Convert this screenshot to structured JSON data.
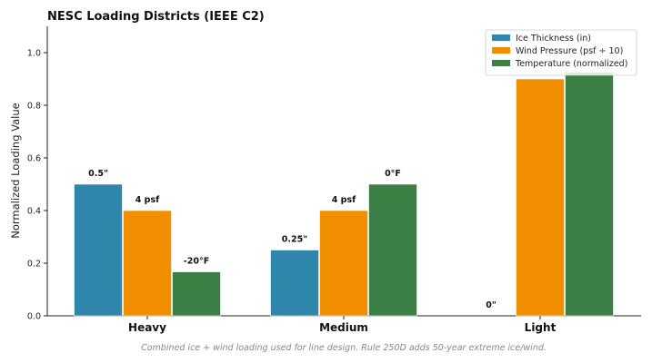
{
  "chart_data": {
    "type": "bar",
    "title": "NESC Loading Districts (IEEE C2)",
    "ylabel": "Normalized Loading Value",
    "xlabel": "",
    "categories": [
      "Heavy",
      "Medium",
      "Light"
    ],
    "ylim": [
      0,
      1.1
    ],
    "yticks": [
      "0.0",
      "0.2",
      "0.4",
      "0.6",
      "0.8",
      "1.0"
    ],
    "grid": false,
    "legend_position": "top-right",
    "series": [
      {
        "name": "Ice Thickness (in)",
        "color": "#2e86ab",
        "values": [
          0.5,
          0.25,
          0.0
        ],
        "labels": [
          "0.5\"",
          "0.25\"",
          "0\""
        ]
      },
      {
        "name": "Wind Pressure (psf ÷ 10)",
        "color": "#f18f01",
        "values": [
          0.4,
          0.4,
          0.9
        ],
        "labels": [
          "4 psf",
          "4 psf",
          ""
        ]
      },
      {
        "name": "Temperature (normalized)",
        "color": "#3b7f44",
        "values": [
          0.167,
          0.5,
          0.925
        ],
        "labels": [
          "-20°F",
          "0°F",
          ""
        ]
      }
    ],
    "caption": "Combined ice + wind loading used for line design. Rule 250D adds 50-year extreme ice/wind."
  }
}
